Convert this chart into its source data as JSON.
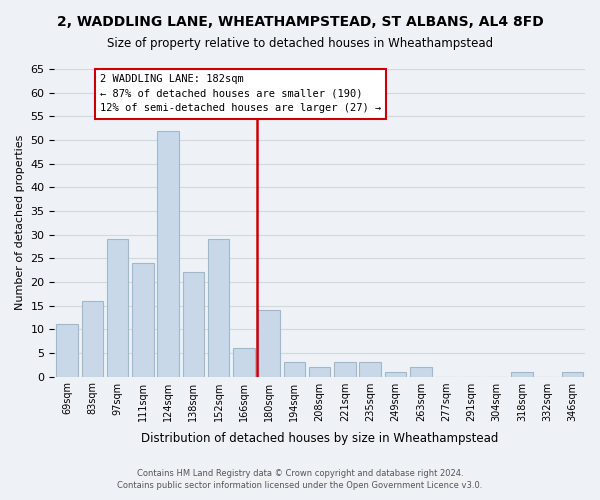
{
  "title": "2, WADDLING LANE, WHEATHAMPSTEAD, ST ALBANS, AL4 8FD",
  "subtitle": "Size of property relative to detached houses in Wheathampstead",
  "xlabel": "Distribution of detached houses by size in Wheathampstead",
  "ylabel": "Number of detached properties",
  "bar_labels": [
    "69sqm",
    "83sqm",
    "97sqm",
    "111sqm",
    "124sqm",
    "138sqm",
    "152sqm",
    "166sqm",
    "180sqm",
    "194sqm",
    "208sqm",
    "221sqm",
    "235sqm",
    "249sqm",
    "263sqm",
    "277sqm",
    "291sqm",
    "304sqm",
    "318sqm",
    "332sqm",
    "346sqm"
  ],
  "bar_values": [
    11,
    16,
    29,
    24,
    52,
    22,
    29,
    6,
    14,
    3,
    2,
    3,
    3,
    1,
    2,
    0,
    0,
    0,
    1,
    0,
    1
  ],
  "bar_color": "#c8d8e8",
  "bar_edge_color": "#a0b8cc",
  "grid_color": "#d0d8e0",
  "property_line_x": 7.5,
  "property_line_color": "#cc0000",
  "annotation_title": "2 WADDLING LANE: 182sqm",
  "annotation_line1": "← 87% of detached houses are smaller (190)",
  "annotation_line2": "12% of semi-detached houses are larger (27) →",
  "annotation_box_color": "#cc0000",
  "footer_line1": "Contains HM Land Registry data © Crown copyright and database right 2024.",
  "footer_line2": "Contains public sector information licensed under the Open Government Licence v3.0.",
  "ylim": [
    0,
    65
  ],
  "yticks": [
    0,
    5,
    10,
    15,
    20,
    25,
    30,
    35,
    40,
    45,
    50,
    55,
    60,
    65
  ],
  "background_color": "#eef2f6"
}
